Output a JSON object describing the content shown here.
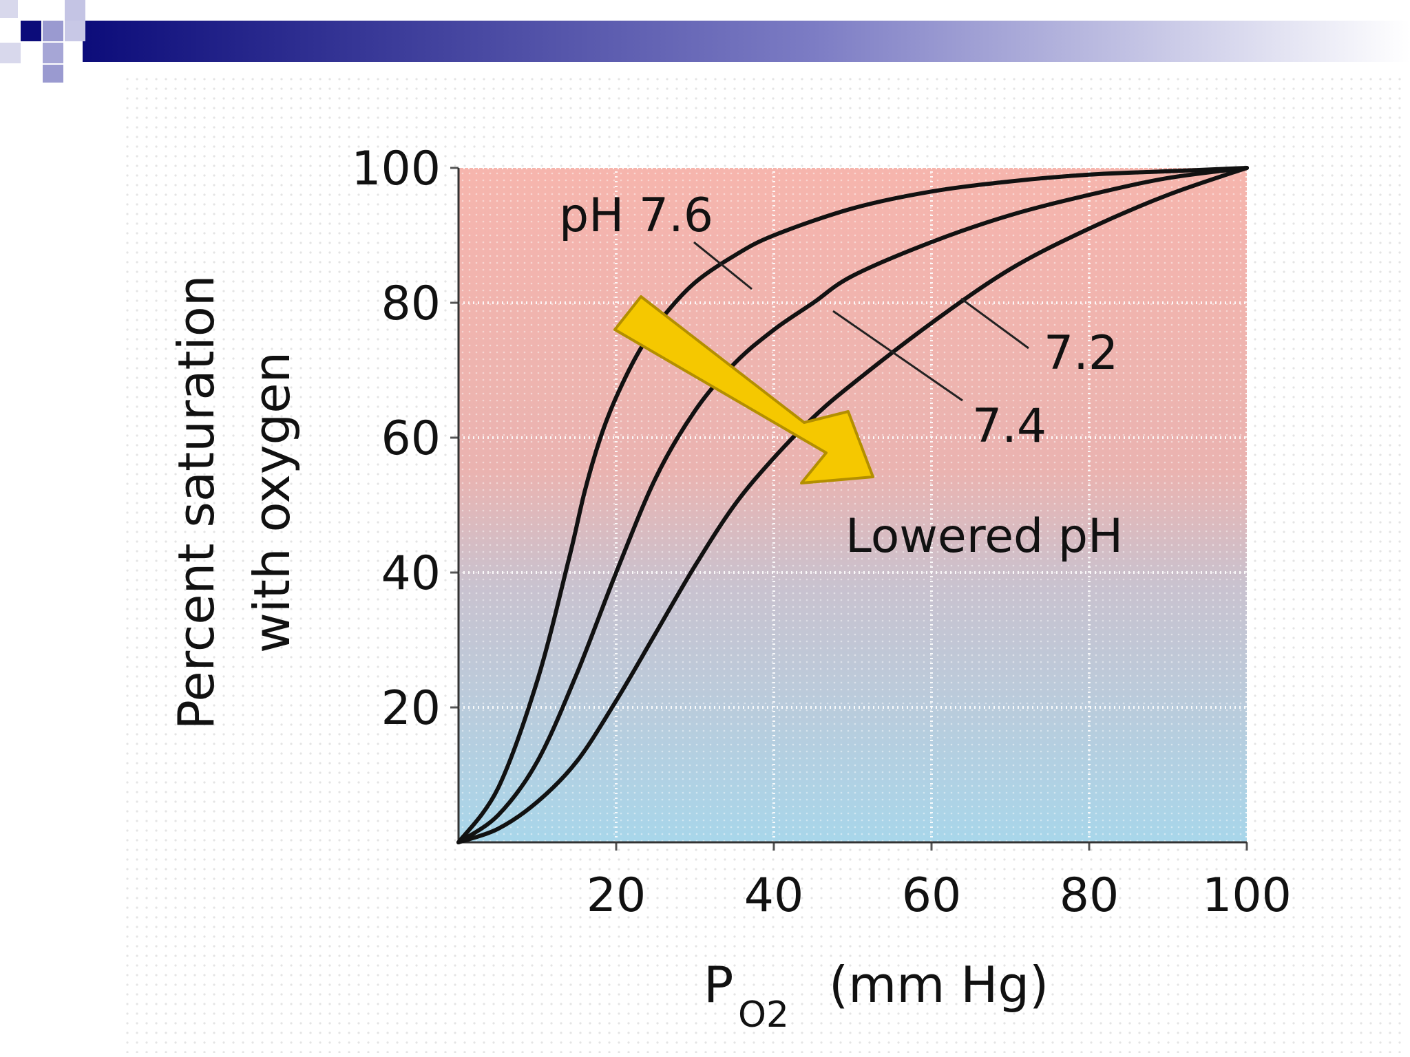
{
  "colors": {
    "header_dark": "#0c0c7a",
    "header_light": "#ffffff",
    "plot_top": "#f6b5ad",
    "plot_bottom": "#a8d6ea",
    "arrow_fill": "#f5c800",
    "arrow_stroke": "#b38f00"
  },
  "chart_data": {
    "type": "line",
    "title": "",
    "xlabel_main": "P",
    "xlabel_subscript": "O2",
    "xlabel_rest": "(mm Hg)",
    "ylabel_line1": "Percent saturation",
    "ylabel_line2": "with oxygen",
    "xlim": [
      0,
      100
    ],
    "ylim": [
      0,
      100
    ],
    "x_ticks": [
      "20",
      "40",
      "60",
      "80",
      "100"
    ],
    "y_ticks": [
      "20",
      "40",
      "60",
      "80",
      "100"
    ],
    "grid": true,
    "series": [
      {
        "name": "pH 7.6",
        "x": [
          0,
          5,
          10,
          14,
          16,
          18,
          20,
          23,
          26,
          30,
          35,
          40,
          50,
          60,
          70,
          80,
          90,
          100
        ],
        "y": [
          0,
          8,
          24,
          42,
          52,
          60,
          66,
          73,
          78,
          83,
          87,
          90,
          94,
          96.5,
          98,
          99,
          99.5,
          100
        ]
      },
      {
        "name": "7.4",
        "x": [
          0,
          5,
          10,
          15,
          20,
          25,
          30,
          35,
          40,
          45,
          50,
          60,
          70,
          80,
          90,
          100
        ],
        "y": [
          0,
          4,
          12,
          25,
          40,
          54,
          64,
          71,
          76,
          80,
          84,
          89,
          93,
          96,
          98.5,
          100
        ]
      },
      {
        "name": "7.2",
        "x": [
          0,
          5,
          10,
          15,
          20,
          25,
          30,
          35,
          40,
          45,
          50,
          60,
          70,
          80,
          90,
          100
        ],
        "y": [
          0,
          2,
          6,
          12,
          21,
          31,
          41,
          50,
          57,
          63,
          68,
          77,
          85,
          91,
          96,
          100
        ]
      }
    ],
    "annotations": {
      "label_76": "pH 7.6",
      "label_74": "7.4",
      "label_72": "7.2",
      "arrow_label": "Lowered pH"
    }
  }
}
